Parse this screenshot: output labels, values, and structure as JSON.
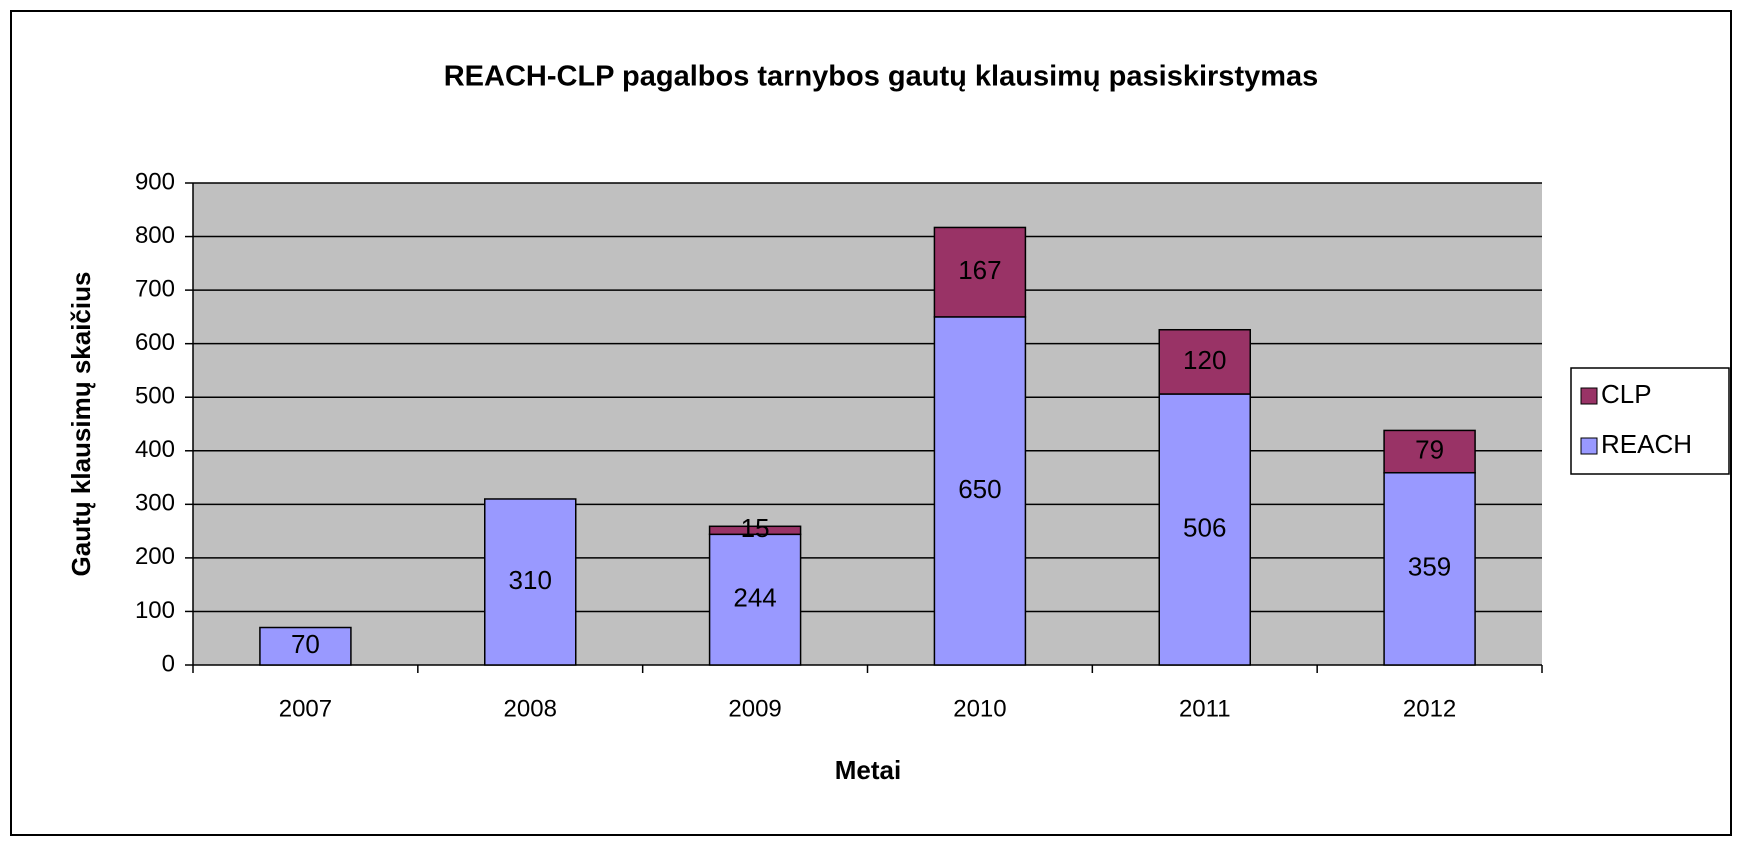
{
  "chart_data": {
    "type": "stacked_bar",
    "title": "REACH-CLP pagalbos tarnybos gautų klausimų pasiskirstymas",
    "x_label": "Metai",
    "y_label": "Gautų klausimų skaičius",
    "categories": [
      "2007",
      "2008",
      "2009",
      "2010",
      "2011",
      "2012"
    ],
    "series": [
      {
        "name": "REACH",
        "color": "#9999ff",
        "values": [
          70,
          310,
          244,
          650,
          506,
          359
        ]
      },
      {
        "name": "CLP",
        "color": "#993366",
        "values": [
          null,
          null,
          15,
          167,
          120,
          79
        ]
      }
    ],
    "ylim": [
      0,
      900
    ],
    "yticks": [
      0,
      100,
      200,
      300,
      400,
      500,
      600,
      700,
      800,
      900
    ],
    "grid": true,
    "legend": "right",
    "plot_background": "#c0c0c0"
  }
}
